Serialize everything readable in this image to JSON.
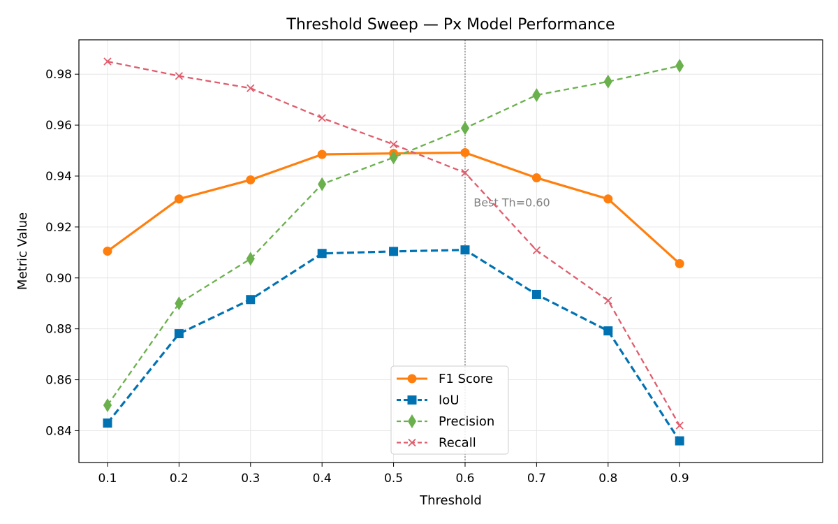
{
  "chart_data": {
    "type": "line",
    "title": "Threshold Sweep — Px Model Performance",
    "xlabel": "Threshold",
    "ylabel": "Metric Value",
    "x": [
      0.1,
      0.2,
      0.3,
      0.4,
      0.5,
      0.6,
      0.7,
      0.8,
      0.9
    ],
    "x_ticks": [
      "0.1",
      "0.2",
      "0.3",
      "0.4",
      "0.5",
      "0.6",
      "0.7",
      "0.8",
      "0.9"
    ],
    "xlim": [
      0.06,
      1.1
    ],
    "ylim": [
      0.8275,
      0.9935
    ],
    "y_ticks": [
      "0.84",
      "0.86",
      "0.88",
      "0.90",
      "0.92",
      "0.94",
      "0.96",
      "0.98"
    ],
    "grid": true,
    "legend_position": "bottom-center",
    "series": [
      {
        "name": "F1 Score",
        "color": "#ff7f0e",
        "marker": "circle",
        "line_style": "solid",
        "values": [
          0.9105,
          0.931,
          0.9385,
          0.9485,
          0.9489,
          0.9492,
          0.9393,
          0.931,
          0.9056
        ]
      },
      {
        "name": "IoU",
        "color": "#0072b2",
        "marker": "square",
        "line_style": "dashed",
        "values": [
          0.843,
          0.8781,
          0.8915,
          0.9096,
          0.9104,
          0.911,
          0.8935,
          0.8792,
          0.836
        ]
      },
      {
        "name": "Precision",
        "color": "#6ab04c",
        "marker": "thin-diamond",
        "line_style": "dashed",
        "values": [
          0.85,
          0.89,
          0.9075,
          0.9368,
          0.9473,
          0.9588,
          0.9718,
          0.9771,
          0.9833
        ]
      },
      {
        "name": "Recall",
        "color": "#e05c6c",
        "marker": "x",
        "line_style": "dashed",
        "values": [
          0.985,
          0.9793,
          0.9745,
          0.9628,
          0.9524,
          0.9413,
          0.9108,
          0.8911,
          0.842
        ]
      }
    ],
    "annotations": [
      {
        "type": "vline",
        "x": 0.6,
        "color": "#808080",
        "style": "dotted"
      },
      {
        "type": "text",
        "x": 0.61,
        "y": 0.9295,
        "text": "Best Th=0.60",
        "color": "#808080"
      }
    ]
  }
}
